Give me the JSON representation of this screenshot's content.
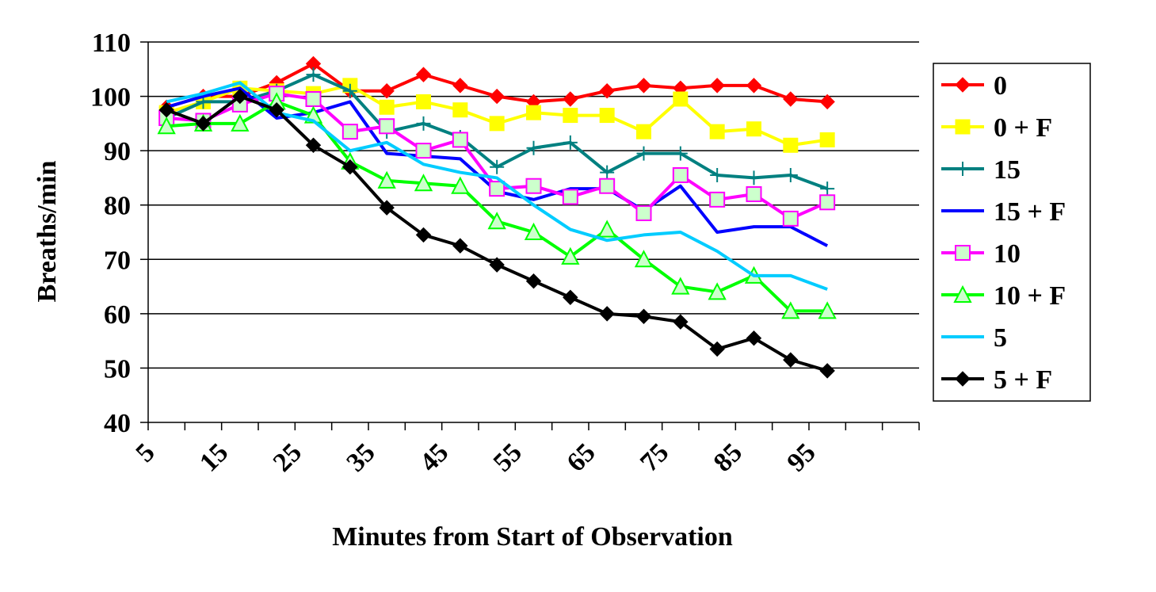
{
  "chart_data": {
    "type": "line",
    "title": "",
    "xlabel": "Minutes from Start of Observation",
    "ylabel": "Breaths/min",
    "ylim": [
      40,
      110
    ],
    "yticks": [
      40,
      50,
      60,
      70,
      80,
      90,
      100,
      110
    ],
    "xlim": [
      5,
      110
    ],
    "xticks": [
      5,
      15,
      25,
      35,
      45,
      55,
      65,
      75,
      85,
      95
    ],
    "grid": "horizontal",
    "legend": "right",
    "x": [
      7.5,
      12.5,
      17.5,
      22.5,
      27.5,
      32.5,
      37.5,
      42.5,
      47.5,
      52.5,
      57.5,
      62.5,
      67.5,
      72.5,
      77.5,
      82.5,
      87.5,
      92.5,
      97.5
    ],
    "series": [
      {
        "name": "0",
        "color": "#ff0000",
        "marker": "diamond",
        "values": [
          98,
          100,
          100,
          102.5,
          106,
          101,
          101,
          104,
          102,
          100,
          99,
          99.5,
          101,
          102,
          101.5,
          102,
          102,
          99.5,
          99
        ]
      },
      {
        "name": "0 + F",
        "color": "#ffff00",
        "marker": "square",
        "values": [
          97,
          99,
          101.5,
          101,
          100.5,
          102,
          98,
          99,
          97.5,
          95,
          97,
          96.5,
          96.5,
          93.5,
          99.5,
          93.5,
          94,
          91,
          92
        ]
      },
      {
        "name": "15",
        "color": "#008080",
        "marker": "plus",
        "values": [
          96,
          99,
          99,
          101,
          104,
          101,
          93.5,
          95,
          92.5,
          87,
          90.5,
          91.5,
          86,
          89.5,
          89.5,
          85.5,
          85,
          85.5,
          83
        ]
      },
      {
        "name": "15 + F",
        "color": "#0000ff",
        "marker": "none",
        "values": [
          98,
          100,
          101.5,
          96,
          97,
          99,
          89.5,
          89,
          88.5,
          82.5,
          81,
          83,
          83,
          79,
          83.5,
          75,
          76,
          76,
          72.5
        ]
      },
      {
        "name": "10",
        "color": "#ff00ff",
        "marker": "square-open",
        "values": [
          96,
          95.5,
          98.5,
          100.5,
          99.5,
          93.5,
          94.5,
          90,
          92,
          83,
          83.5,
          81.5,
          83.5,
          78.5,
          85.5,
          81,
          82,
          77.5,
          80.5
        ]
      },
      {
        "name": "10 + F",
        "color": "#00ff00",
        "marker": "triangle",
        "values": [
          94.5,
          95,
          95,
          99,
          96.5,
          88,
          84.5,
          84,
          83.5,
          77,
          75,
          70.5,
          75.5,
          70,
          65,
          64,
          67,
          60.5,
          60.5
        ]
      },
      {
        "name": "5",
        "color": "#00ccff",
        "marker": "none",
        "values": [
          99,
          100.5,
          102.5,
          97,
          95.5,
          90,
          91.5,
          87.5,
          86,
          85,
          80,
          75.5,
          73.5,
          74.5,
          75,
          71.5,
          67,
          67,
          64.5
        ]
      },
      {
        "name": "5 + F",
        "color": "#000000",
        "marker": "diamond",
        "values": [
          97.5,
          95,
          100,
          97.5,
          91,
          87,
          79.5,
          74.5,
          72.5,
          69,
          66,
          63,
          60,
          59.5,
          58.5,
          53.5,
          55.5,
          51.5,
          49.5
        ]
      }
    ]
  }
}
